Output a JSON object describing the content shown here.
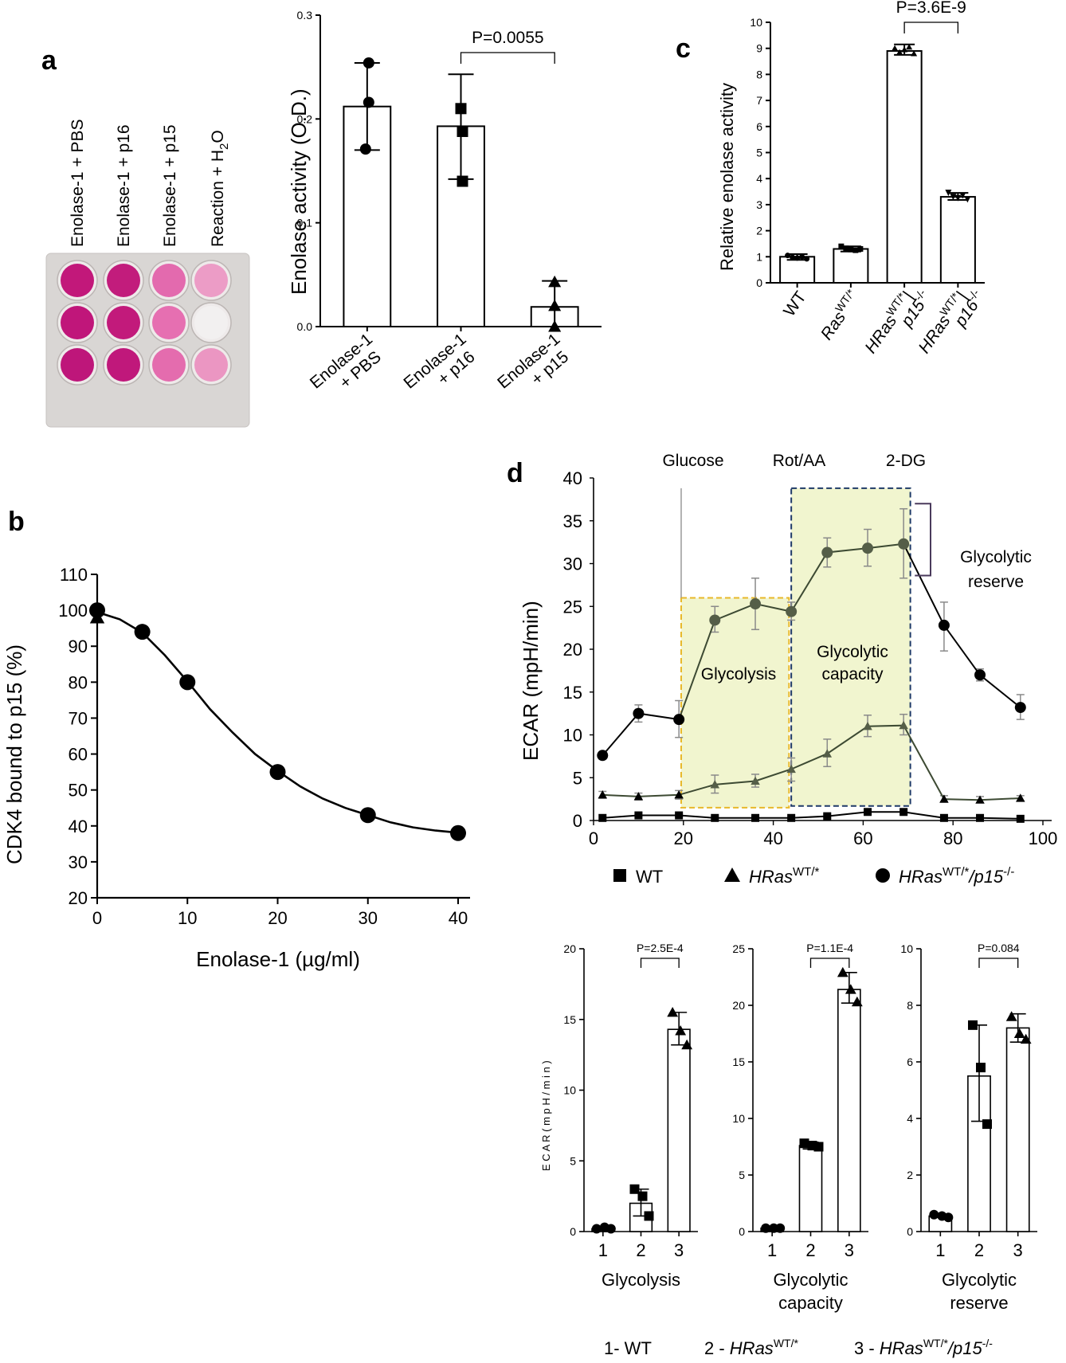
{
  "panels": {
    "a": "a",
    "b": "b",
    "c": "c",
    "d": "d"
  },
  "plate": {
    "column_labels": [
      "Enolase-1 + PBS",
      "Enolase-1 + p16",
      "Enolase-1 + p15",
      "Reaction + H"
    ],
    "h2o_subscript": "2",
    "h2o_tail": "O",
    "well_colors": [
      [
        "#c2187a",
        "#c21c7c",
        "#e36aae",
        "#ec9cc6"
      ],
      [
        "#c0167a",
        "#c21a7b",
        "#e66fb1",
        "#f2f0f0"
      ],
      [
        "#be167a",
        "#c0187b",
        "#e46cae",
        "#eb96c2"
      ]
    ]
  },
  "chart_data": [
    {
      "id": "a",
      "type": "bar",
      "categories": [
        [
          "Enolase-1",
          "+ PBS"
        ],
        [
          "Enolase-1",
          "+ p16"
        ],
        [
          "Enolase-1",
          "+ p15"
        ]
      ],
      "values": [
        0.212,
        0.193,
        0.019
      ],
      "errors": [
        [
          0.17,
          0.254
        ],
        [
          0.142,
          0.243
        ],
        [
          0.0,
          0.044
        ]
      ],
      "points": [
        [
          0.254,
          0.216,
          0.171
        ],
        [
          0.21,
          0.14,
          0.188
        ],
        [
          0.043,
          0.02,
          0.0
        ]
      ],
      "markers": [
        "circle",
        "square",
        "triangle"
      ],
      "ylabel": "Enolase activity (O.D.)",
      "ylim": [
        0,
        0.3
      ],
      "yticks": [
        "0.0",
        "0.1",
        "0.2",
        "0.3"
      ],
      "annotation": "P=0.0055"
    },
    {
      "id": "c",
      "type": "bar",
      "categories": [
        "WT",
        "Ras",
        "HRas",
        "HRas"
      ],
      "category_sup": [
        "",
        "WT/*",
        "WT/*",
        "WT/*"
      ],
      "category_tail": [
        "",
        "",
        "|",
        "|"
      ],
      "category_line2": [
        "",
        "",
        "p15",
        "p16"
      ],
      "category_line2_sup": [
        "",
        "",
        "-/-",
        "-/-"
      ],
      "values": [
        1.0,
        1.3,
        8.9,
        3.3
      ],
      "errors": [
        [
          0.88,
          1.1
        ],
        [
          1.2,
          1.4
        ],
        [
          8.75,
          9.15
        ],
        [
          3.18,
          3.45
        ]
      ],
      "ylabel": "Relative enolase activity",
      "ylim": [
        0,
        10
      ],
      "yticks": [
        "0",
        "1",
        "2",
        "3",
        "4",
        "5",
        "6",
        "7",
        "8",
        "9",
        "10"
      ],
      "annotation": "P=3.6E-9"
    },
    {
      "id": "b",
      "type": "line",
      "x": [
        0,
        5,
        10,
        20,
        30,
        40
      ],
      "values": [
        100,
        94,
        80,
        55,
        43,
        38
      ],
      "curve_x": [
        0,
        2.5,
        5,
        7.5,
        10,
        12.5,
        15,
        17.5,
        20,
        22.5,
        25,
        27.5,
        30,
        32.5,
        35,
        37.5,
        40
      ],
      "curve_y": [
        99.5,
        97.5,
        93.8,
        87.5,
        80.2,
        72.5,
        66.0,
        60.0,
        55.3,
        51.0,
        47.6,
        45.0,
        43.0,
        41.0,
        39.6,
        38.7,
        38.1
      ],
      "xlabel": "Enolase-1 (µg/ml)",
      "ylabel": "CDK4 bound to p15 (%)",
      "xlim": [
        0,
        40
      ],
      "ylim": [
        20,
        110
      ],
      "xticks": [
        "0",
        "10",
        "20",
        "30",
        "40"
      ],
      "yticks": [
        "20",
        "30",
        "40",
        "50",
        "60",
        "70",
        "80",
        "90",
        "100",
        "110"
      ]
    },
    {
      "id": "d-main",
      "type": "line",
      "x": [
        2,
        10,
        19,
        27,
        36,
        44,
        52,
        61,
        69,
        78,
        86,
        95
      ],
      "series": [
        {
          "name": "WT",
          "values": [
            0.3,
            0.6,
            0.6,
            0.3,
            0.3,
            0.3,
            0.5,
            1.0,
            1.0,
            0.3,
            0.3,
            0.2
          ]
        },
        {
          "name": "HRasWT/*",
          "values": [
            3.0,
            2.8,
            3.0,
            4.2,
            4.6,
            6.0,
            7.8,
            11.0,
            11.1,
            2.5,
            2.4,
            2.6
          ]
        },
        {
          "name": "HRasWT/*/p15-/-",
          "values": [
            7.6,
            12.5,
            11.8,
            23.4,
            25.3,
            24.4,
            31.3,
            31.8,
            32.3,
            22.8,
            17.0,
            13.2
          ]
        }
      ],
      "error_bars": [
        [
          [
            0.2,
            0.4
          ],
          [
            0.5,
            0.7
          ],
          [
            0.5,
            0.8
          ],
          [
            0.2,
            0.4
          ],
          [
            0.2,
            0.4
          ],
          [
            0.2,
            0.4
          ],
          [
            0.3,
            0.7
          ],
          [
            0.7,
            1.3
          ],
          [
            0.7,
            1.3
          ],
          [
            0.2,
            0.4
          ],
          [
            0.2,
            0.4
          ],
          [
            0.1,
            0.3
          ]
        ],
        [
          [
            2.6,
            3.4
          ],
          [
            2.4,
            3.2
          ],
          [
            2.5,
            3.5
          ],
          [
            3.2,
            5.3
          ],
          [
            3.9,
            5.4
          ],
          [
            4.6,
            7.3
          ],
          [
            6.3,
            9.5
          ],
          [
            9.8,
            12.3
          ],
          [
            10.0,
            12.4
          ],
          [
            2.2,
            2.9
          ],
          [
            2.1,
            2.8
          ],
          [
            2.3,
            2.9
          ]
        ],
        [
          [
            7.2,
            8.0
          ],
          [
            11.5,
            13.5
          ],
          [
            9.7,
            14.0
          ],
          [
            22.0,
            25.0
          ],
          [
            22.3,
            28.3
          ],
          [
            23.4,
            25.5
          ],
          [
            29.6,
            33.0
          ],
          [
            29.7,
            34.0
          ],
          [
            28.3,
            36.4
          ],
          [
            19.8,
            25.5
          ],
          [
            16.3,
            17.7
          ],
          [
            11.8,
            14.7
          ]
        ]
      ],
      "markers": [
        "square",
        "triangle",
        "circle"
      ],
      "ylabel": "ECAR (mpH/min)",
      "xlim": [
        0,
        100
      ],
      "ylim": [
        0,
        40
      ],
      "xticks": [
        "0",
        "20",
        "40",
        "60",
        "80",
        "100"
      ],
      "yticks": [
        "0",
        "5",
        "10",
        "15",
        "20",
        "25",
        "30",
        "35",
        "40"
      ],
      "injections": [
        "Glucose",
        "Rot/AA",
        "2-DG"
      ],
      "box_labels": {
        "glycolysis": "Glycolysis",
        "capacity_l1": "Glycolytic",
        "capacity_l2": "capacity",
        "reserve_l1": "Glycolytic",
        "reserve_l2": "reserve"
      },
      "legend": {
        "wt": "WT",
        "ras": "HRas",
        "ras_sup": "WT/*",
        "ras15": "HRas",
        "ras15_sup": "WT/*",
        "ras15_mid": "/p15",
        "ras15_tail": "-/-"
      }
    },
    {
      "id": "d-glycolysis",
      "type": "bar",
      "categories": [
        "1",
        "2",
        "3"
      ],
      "values": [
        0.2,
        2.0,
        14.3
      ],
      "errors": [
        [
          0.1,
          0.3
        ],
        [
          1.1,
          3.0
        ],
        [
          13.2,
          15.5
        ]
      ],
      "points": [
        [
          0.2,
          0.3,
          0.2
        ],
        [
          3.0,
          2.5,
          1.1
        ],
        [
          15.5,
          14.2,
          13.2
        ]
      ],
      "markers": [
        "circle",
        "square",
        "triangle"
      ],
      "ylim": [
        0,
        20
      ],
      "yticks": [
        "0",
        "5",
        "10",
        "15",
        "20"
      ],
      "ylabel": "E C A R  ( m p H / m i n )",
      "title_l1": "Glycolysis",
      "title_l2": "",
      "annotation": "P=2.5E-4"
    },
    {
      "id": "d-capacity",
      "type": "bar",
      "categories": [
        "1",
        "2",
        "3"
      ],
      "values": [
        0.3,
        7.6,
        21.4
      ],
      "errors": [
        [
          0.2,
          0.4
        ],
        [
          7.3,
          7.9
        ],
        [
          20.2,
          22.9
        ]
      ],
      "points": [
        [
          0.3,
          0.3,
          0.3
        ],
        [
          7.8,
          7.6,
          7.5
        ],
        [
          22.9,
          21.4,
          20.3
        ]
      ],
      "markers": [
        "circle",
        "square",
        "triangle"
      ],
      "ylim": [
        0,
        25
      ],
      "yticks": [
        "0",
        "5",
        "10",
        "15",
        "20",
        "25"
      ],
      "title_l1": "Glycolytic",
      "title_l2": "capacity",
      "annotation": "P=1.1E-4"
    },
    {
      "id": "d-reserve",
      "type": "bar",
      "categories": [
        "1",
        "2",
        "3"
      ],
      "values": [
        0.55,
        5.5,
        7.2
      ],
      "errors": [
        [
          0.5,
          0.6
        ],
        [
          3.9,
          7.3
        ],
        [
          6.7,
          7.7
        ]
      ],
      "points": [
        [
          0.6,
          0.55,
          0.5
        ],
        [
          7.3,
          5.8,
          3.8
        ],
        [
          7.6,
          7.0,
          6.8
        ]
      ],
      "markers": [
        "circle",
        "square",
        "triangle"
      ],
      "ylim": [
        0,
        10
      ],
      "yticks": [
        "0",
        "2",
        "4",
        "6",
        "8",
        "10"
      ],
      "title_l1": "Glycolytic",
      "title_l2": "reserve",
      "annotation": "P=0.084"
    }
  ],
  "footer": {
    "g1": "1- WT",
    "g2_pre": "2 - ",
    "g2_name": "HRas",
    "g2_sup": "WT/*",
    "g3_pre": "3 - ",
    "g3_name": "HRas",
    "g3_sup": "WT/*",
    "g3_mid": "/p15",
    "g3_tail": "-/-"
  },
  "colors": {
    "ink": "#000000",
    "dark_green_line": "#3d4a33",
    "green_marker": "#555e48",
    "gray_error": "#8a8a8a",
    "highlight_fill": "#f1f5cf",
    "glycolysis_box": "#e8b82a",
    "capacity_box": "#1f3a68",
    "bracket": "#4a3a5c"
  }
}
